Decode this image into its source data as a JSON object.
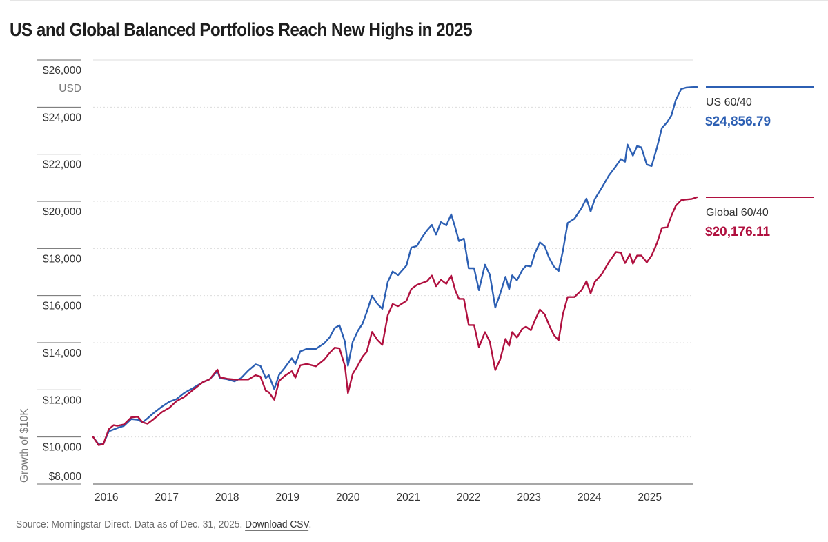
{
  "chart_data": {
    "type": "line",
    "title": "US and Global Balanced Portfolios Reach New Highs in 2025",
    "ylabel": "Growth of $10K",
    "yunit": "USD",
    "xlabel": "",
    "ylim": [
      8000,
      26000
    ],
    "yticks": [
      {
        "value": 26000,
        "label": "$26,000"
      },
      {
        "value": 24000,
        "label": "$24,000"
      },
      {
        "value": 22000,
        "label": "$22,000"
      },
      {
        "value": 20000,
        "label": "$20,000"
      },
      {
        "value": 18000,
        "label": "$18,000"
      },
      {
        "value": 16000,
        "label": "$16,000"
      },
      {
        "value": 14000,
        "label": "$14,000"
      },
      {
        "value": 12000,
        "label": "$12,000"
      },
      {
        "value": 10000,
        "label": "$10,000"
      },
      {
        "value": 8000,
        "label": "$8,000"
      }
    ],
    "xlim": [
      2016.0,
      2026.0
    ],
    "xticks": [
      {
        "value": 2016,
        "label": "2016"
      },
      {
        "value": 2017,
        "label": "2017"
      },
      {
        "value": 2018,
        "label": "2018"
      },
      {
        "value": 2019,
        "label": "2019"
      },
      {
        "value": 2020,
        "label": "2020"
      },
      {
        "value": 2021,
        "label": "2021"
      },
      {
        "value": 2022,
        "label": "2022"
      },
      {
        "value": 2023,
        "label": "2023"
      },
      {
        "value": 2024,
        "label": "2024"
      },
      {
        "value": 2025,
        "label": "2025"
      }
    ],
    "grid": true,
    "legend_placement": "right",
    "series": [
      {
        "name": "US 60/40",
        "color": "#2c5fb3",
        "end_value_label": "$24,856.79",
        "points": [
          [
            2016.0,
            10000
          ],
          [
            2016.09,
            9680
          ],
          [
            2016.17,
            9710
          ],
          [
            2016.26,
            10240
          ],
          [
            2016.4,
            10380
          ],
          [
            2016.51,
            10470
          ],
          [
            2016.63,
            10760
          ],
          [
            2016.74,
            10730
          ],
          [
            2016.82,
            10620
          ],
          [
            2016.9,
            10790
          ],
          [
            2016.99,
            10990
          ],
          [
            2017.14,
            11290
          ],
          [
            2017.26,
            11490
          ],
          [
            2017.38,
            11610
          ],
          [
            2017.51,
            11870
          ],
          [
            2017.65,
            12070
          ],
          [
            2017.82,
            12330
          ],
          [
            2017.93,
            12450
          ],
          [
            2018.06,
            12800
          ],
          [
            2018.1,
            12500
          ],
          [
            2018.22,
            12450
          ],
          [
            2018.34,
            12360
          ],
          [
            2018.45,
            12500
          ],
          [
            2018.57,
            12820
          ],
          [
            2018.69,
            13080
          ],
          [
            2018.77,
            13020
          ],
          [
            2018.86,
            12500
          ],
          [
            2018.91,
            12620
          ],
          [
            2019.0,
            12030
          ],
          [
            2019.08,
            12640
          ],
          [
            2019.17,
            12930
          ],
          [
            2019.29,
            13340
          ],
          [
            2019.35,
            13100
          ],
          [
            2019.43,
            13630
          ],
          [
            2019.54,
            13740
          ],
          [
            2019.69,
            13740
          ],
          [
            2019.83,
            13980
          ],
          [
            2019.92,
            14240
          ],
          [
            2020.0,
            14620
          ],
          [
            2020.08,
            14740
          ],
          [
            2020.17,
            14040
          ],
          [
            2020.22,
            13020
          ],
          [
            2020.3,
            14040
          ],
          [
            2020.39,
            14530
          ],
          [
            2020.46,
            14800
          ],
          [
            2020.53,
            15290
          ],
          [
            2020.62,
            15990
          ],
          [
            2020.71,
            15640
          ],
          [
            2020.79,
            15440
          ],
          [
            2020.88,
            16580
          ],
          [
            2020.96,
            17020
          ],
          [
            2021.05,
            16870
          ],
          [
            2021.19,
            17280
          ],
          [
            2021.27,
            18040
          ],
          [
            2021.36,
            18100
          ],
          [
            2021.45,
            18480
          ],
          [
            2021.53,
            18770
          ],
          [
            2021.61,
            19000
          ],
          [
            2021.68,
            18590
          ],
          [
            2021.76,
            19120
          ],
          [
            2021.85,
            18980
          ],
          [
            2021.93,
            19450
          ],
          [
            2022.0,
            18860
          ],
          [
            2022.06,
            18310
          ],
          [
            2022.14,
            18420
          ],
          [
            2022.22,
            17160
          ],
          [
            2022.31,
            17160
          ],
          [
            2022.39,
            16230
          ],
          [
            2022.49,
            17310
          ],
          [
            2022.57,
            16890
          ],
          [
            2022.66,
            15490
          ],
          [
            2022.74,
            16070
          ],
          [
            2022.83,
            16800
          ],
          [
            2022.89,
            16270
          ],
          [
            2022.94,
            16860
          ],
          [
            2023.02,
            16650
          ],
          [
            2023.11,
            17090
          ],
          [
            2023.17,
            17270
          ],
          [
            2023.25,
            17240
          ],
          [
            2023.32,
            17820
          ],
          [
            2023.4,
            18260
          ],
          [
            2023.48,
            18090
          ],
          [
            2023.55,
            17620
          ],
          [
            2023.63,
            17240
          ],
          [
            2023.71,
            17040
          ],
          [
            2023.78,
            17880
          ],
          [
            2023.86,
            19080
          ],
          [
            2023.97,
            19260
          ],
          [
            2024.09,
            19720
          ],
          [
            2024.17,
            20120
          ],
          [
            2024.24,
            19570
          ],
          [
            2024.31,
            20100
          ],
          [
            2024.43,
            20600
          ],
          [
            2024.54,
            21090
          ],
          [
            2024.66,
            21500
          ],
          [
            2024.74,
            21790
          ],
          [
            2024.81,
            21680
          ],
          [
            2024.85,
            22410
          ],
          [
            2024.94,
            21940
          ],
          [
            2025.01,
            22350
          ],
          [
            2025.08,
            22290
          ],
          [
            2025.17,
            21560
          ],
          [
            2025.25,
            21500
          ],
          [
            2025.34,
            22290
          ],
          [
            2025.42,
            23110
          ],
          [
            2025.51,
            23370
          ],
          [
            2025.58,
            23660
          ],
          [
            2025.65,
            24300
          ],
          [
            2025.74,
            24770
          ],
          [
            2025.82,
            24830
          ],
          [
            2025.91,
            24850
          ],
          [
            2026.0,
            24856.79
          ]
        ]
      },
      {
        "name": "Global 60/40",
        "color": "#b0103f",
        "end_value_label": "$20,176.11",
        "points": [
          [
            2016.0,
            10000
          ],
          [
            2016.09,
            9650
          ],
          [
            2016.17,
            9700
          ],
          [
            2016.26,
            10330
          ],
          [
            2016.34,
            10500
          ],
          [
            2016.4,
            10470
          ],
          [
            2016.51,
            10530
          ],
          [
            2016.63,
            10830
          ],
          [
            2016.74,
            10860
          ],
          [
            2016.82,
            10620
          ],
          [
            2016.9,
            10560
          ],
          [
            2016.99,
            10730
          ],
          [
            2017.14,
            11060
          ],
          [
            2017.26,
            11230
          ],
          [
            2017.38,
            11520
          ],
          [
            2017.51,
            11700
          ],
          [
            2017.65,
            11990
          ],
          [
            2017.82,
            12330
          ],
          [
            2017.93,
            12450
          ],
          [
            2018.06,
            12860
          ],
          [
            2018.1,
            12540
          ],
          [
            2018.22,
            12470
          ],
          [
            2018.34,
            12440
          ],
          [
            2018.45,
            12440
          ],
          [
            2018.57,
            12440
          ],
          [
            2018.69,
            12620
          ],
          [
            2018.77,
            12560
          ],
          [
            2018.86,
            11960
          ],
          [
            2018.91,
            11900
          ],
          [
            2019.0,
            11580
          ],
          [
            2019.08,
            12380
          ],
          [
            2019.17,
            12590
          ],
          [
            2019.29,
            12790
          ],
          [
            2019.35,
            12520
          ],
          [
            2019.43,
            13040
          ],
          [
            2019.54,
            13100
          ],
          [
            2019.69,
            13000
          ],
          [
            2019.83,
            13290
          ],
          [
            2019.92,
            13580
          ],
          [
            2020.0,
            13790
          ],
          [
            2020.08,
            13760
          ],
          [
            2020.17,
            13010
          ],
          [
            2020.22,
            11860
          ],
          [
            2020.3,
            12680
          ],
          [
            2020.39,
            13060
          ],
          [
            2020.46,
            13400
          ],
          [
            2020.53,
            13610
          ],
          [
            2020.62,
            14460
          ],
          [
            2020.71,
            14110
          ],
          [
            2020.79,
            13910
          ],
          [
            2020.88,
            15170
          ],
          [
            2020.96,
            15640
          ],
          [
            2021.05,
            15550
          ],
          [
            2021.19,
            15780
          ],
          [
            2021.27,
            16280
          ],
          [
            2021.36,
            16450
          ],
          [
            2021.53,
            16610
          ],
          [
            2021.61,
            16850
          ],
          [
            2021.68,
            16400
          ],
          [
            2021.76,
            16670
          ],
          [
            2021.85,
            16500
          ],
          [
            2021.93,
            16850
          ],
          [
            2022.0,
            16210
          ],
          [
            2022.06,
            15860
          ],
          [
            2022.14,
            15860
          ],
          [
            2022.22,
            14750
          ],
          [
            2022.31,
            14750
          ],
          [
            2022.39,
            13810
          ],
          [
            2022.49,
            14450
          ],
          [
            2022.57,
            14040
          ],
          [
            2022.66,
            12840
          ],
          [
            2022.74,
            13280
          ],
          [
            2022.83,
            14160
          ],
          [
            2022.89,
            13870
          ],
          [
            2022.94,
            14450
          ],
          [
            2023.02,
            14220
          ],
          [
            2023.11,
            14600
          ],
          [
            2023.17,
            14680
          ],
          [
            2023.25,
            14530
          ],
          [
            2023.32,
            14970
          ],
          [
            2023.4,
            15410
          ],
          [
            2023.48,
            15200
          ],
          [
            2023.55,
            14760
          ],
          [
            2023.63,
            14330
          ],
          [
            2023.71,
            14100
          ],
          [
            2023.78,
            15200
          ],
          [
            2023.86,
            15940
          ],
          [
            2023.97,
            15940
          ],
          [
            2024.09,
            16230
          ],
          [
            2024.17,
            16610
          ],
          [
            2024.24,
            16090
          ],
          [
            2024.31,
            16580
          ],
          [
            2024.43,
            16930
          ],
          [
            2024.54,
            17410
          ],
          [
            2024.66,
            17850
          ],
          [
            2024.74,
            17820
          ],
          [
            2024.81,
            17380
          ],
          [
            2024.89,
            17760
          ],
          [
            2024.94,
            17350
          ],
          [
            2025.01,
            17700
          ],
          [
            2025.08,
            17700
          ],
          [
            2025.17,
            17410
          ],
          [
            2025.25,
            17700
          ],
          [
            2025.34,
            18230
          ],
          [
            2025.42,
            18870
          ],
          [
            2025.51,
            18900
          ],
          [
            2025.58,
            19400
          ],
          [
            2025.65,
            19810
          ],
          [
            2025.74,
            20050
          ],
          [
            2025.82,
            20080
          ],
          [
            2025.91,
            20100
          ],
          [
            2026.0,
            20176.11
          ]
        ]
      }
    ]
  },
  "source": {
    "text": "Source: Morningstar Direct. Data as of Dec. 31, 2025. ",
    "link_label": "Download CSV",
    "suffix": "."
  }
}
